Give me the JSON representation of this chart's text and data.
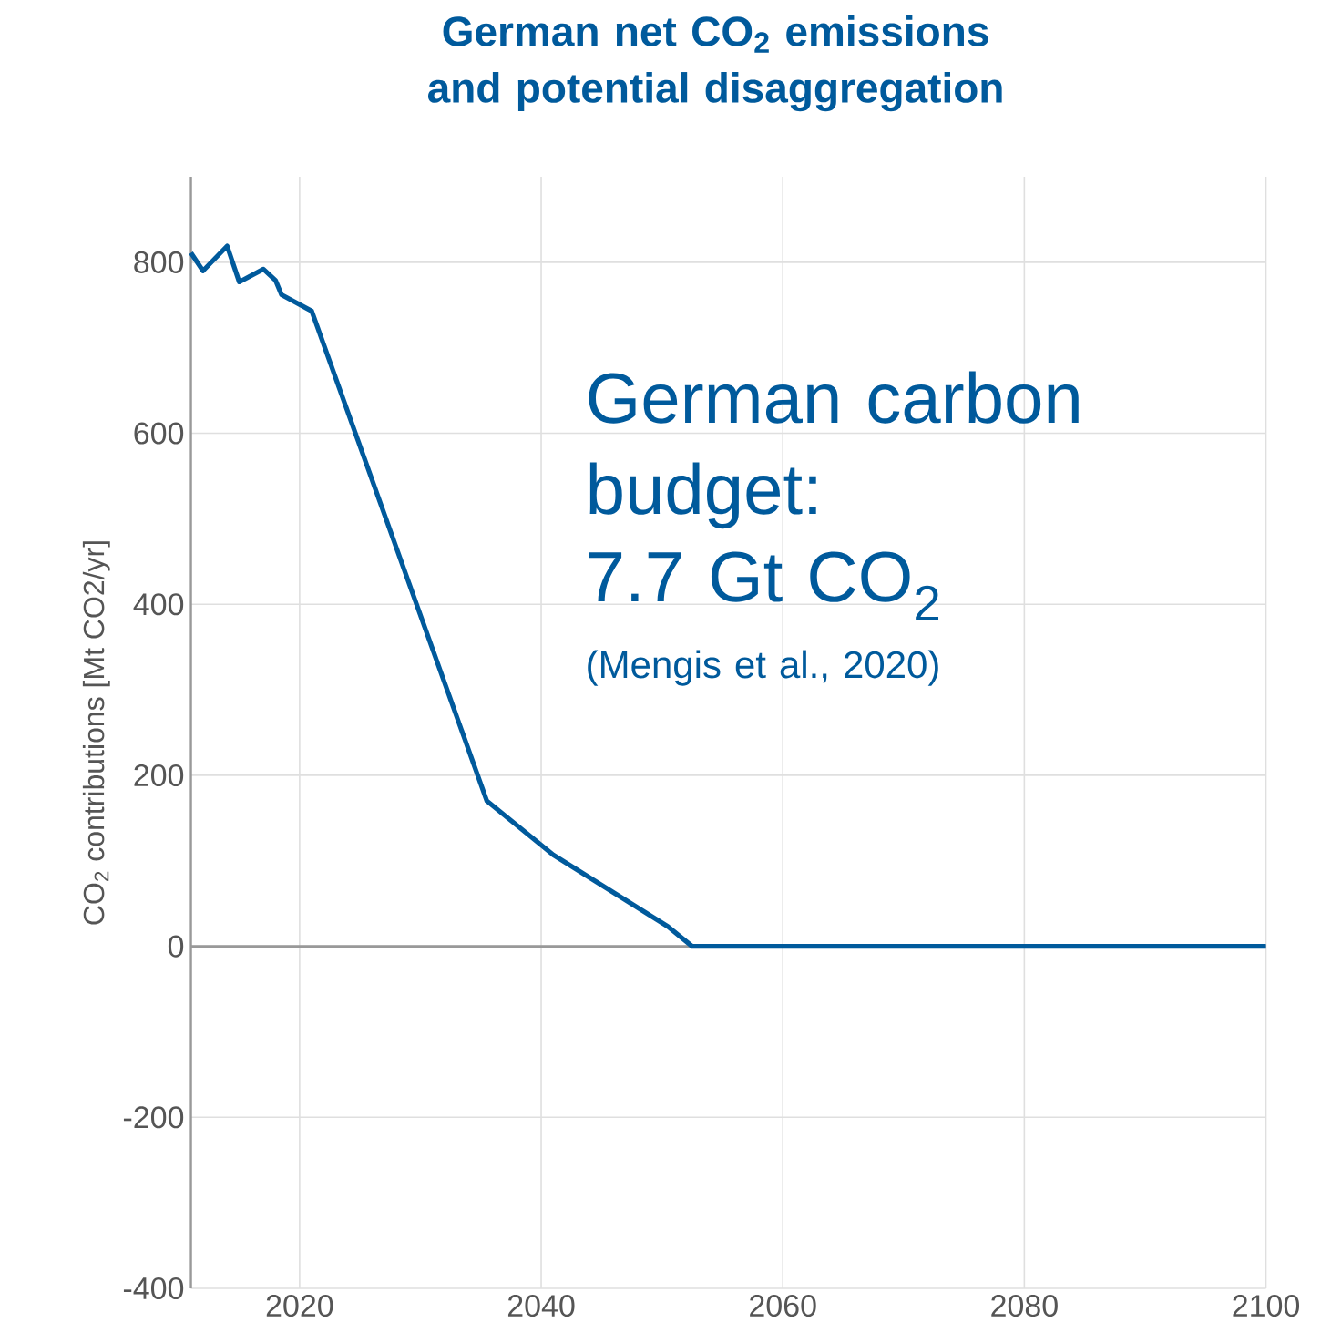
{
  "chart_data": {
    "type": "line",
    "title": "German net CO$_{2}$ emissions and potential disaggregation",
    "ylabel": "CO$_{2}$ contributions [Mt CO2/yr]",
    "annotations": [
      "German carbon budget:",
      "7.7 Gt CO$_{2}$",
      "(Mengis et al., 2020)"
    ],
    "series": [
      {
        "color": "#005a9c",
        "x": [
          2011,
          2012,
          2014,
          2015,
          2017,
          2018,
          2018.5,
          2021,
          2035.5,
          2041,
          2050.5,
          2052.5,
          2100
        ],
        "values": [
          811,
          790,
          819,
          777,
          792,
          779,
          762,
          743,
          170,
          107,
          23,
          0,
          0
        ]
      }
    ],
    "xlim": [
      2011,
      2100
    ],
    "xticks": [
      2020,
      2040,
      2060,
      2080,
      2100
    ],
    "ylim": [
      -400,
      900
    ],
    "yticks": [
      -400,
      -200,
      0,
      200,
      400,
      600,
      800
    ],
    "ref_lines": [
      {
        "axis": "y",
        "value": 0,
        "color": "#999999"
      }
    ],
    "grid": true,
    "marker": "none",
    "line_style": "solid"
  }
}
